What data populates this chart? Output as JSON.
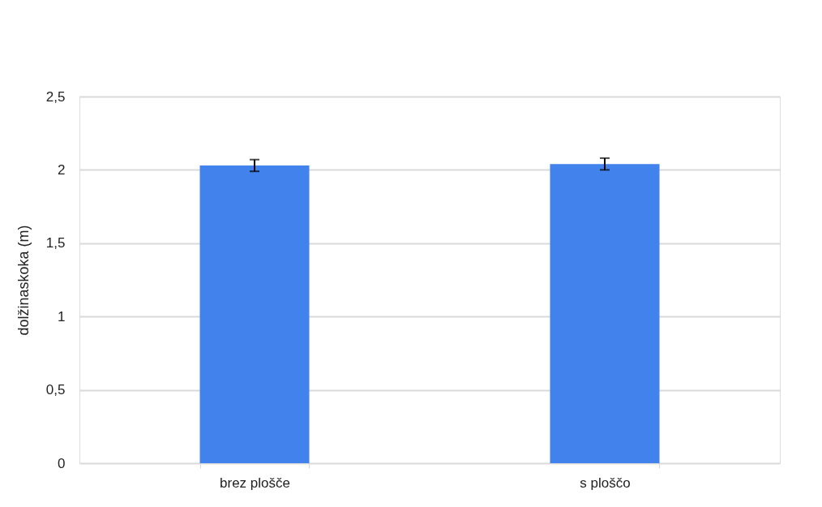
{
  "chart_data": {
    "type": "bar",
    "ylabel": "dolžinaskoka (m)",
    "categories": [
      "brez plošče",
      "s ploščo"
    ],
    "values": [
      2.03,
      2.04
    ],
    "errors": [
      0.04,
      0.04
    ],
    "colors": [
      "#4282ec",
      "#4282ec"
    ],
    "ylim": [
      0,
      2.5
    ],
    "yticks": [
      {
        "value": 0,
        "label": "0"
      },
      {
        "value": 0.5,
        "label": "0,5"
      },
      {
        "value": 1,
        "label": "1"
      },
      {
        "value": 1.5,
        "label": "1,5"
      },
      {
        "value": 2,
        "label": "2"
      },
      {
        "value": 2.5,
        "label": "2,5"
      }
    ],
    "grid": "y"
  }
}
